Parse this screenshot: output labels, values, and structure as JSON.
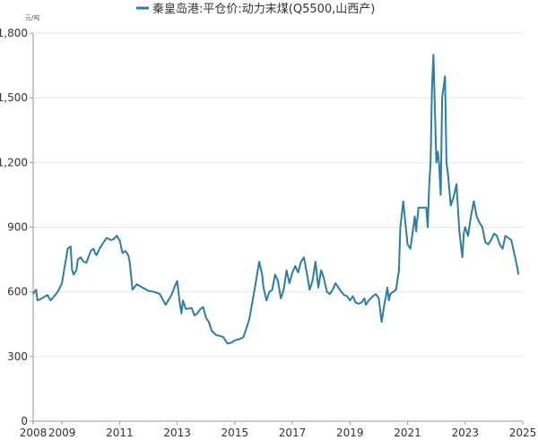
{
  "chart_data": {
    "type": "line",
    "title": "",
    "ylabel": "元/吨",
    "xlabel": "",
    "ylim": [
      0,
      1800
    ],
    "yticks": [
      0,
      300,
      600,
      900,
      1200,
      1500,
      1800
    ],
    "ytick_labels": [
      "0",
      "300",
      "600",
      "900",
      "1,200",
      "1,500",
      "1,800"
    ],
    "xlim": [
      2008.0,
      2025.0
    ],
    "xticks": [
      2008,
      2009,
      2011,
      2013,
      2015,
      2017,
      2019,
      2021,
      2023,
      2025
    ],
    "xtick_labels": [
      "2008",
      "2009",
      "2011",
      "2013",
      "2015",
      "2017",
      "2019",
      "2021",
      "2023",
      "2025"
    ],
    "grid": "horizontal",
    "legend_position": "top-center",
    "series": [
      {
        "name": "秦皇岛港:平仓价:动力末煤(Q5500,山西产)",
        "color": "#2b7ea4",
        "x": [
          2008.0,
          2008.1,
          2008.15,
          2008.3,
          2008.5,
          2008.6,
          2008.7,
          2008.85,
          2009.0,
          2009.1,
          2009.2,
          2009.3,
          2009.35,
          2009.4,
          2009.5,
          2009.55,
          2009.65,
          2009.75,
          2009.85,
          2010.0,
          2010.1,
          2010.15,
          2010.2,
          2010.3,
          2010.4,
          2010.55,
          2010.7,
          2010.8,
          2010.9,
          2011.0,
          2011.1,
          2011.2,
          2011.3,
          2011.35,
          2011.45,
          2011.6,
          2011.8,
          2012.0,
          2012.2,
          2012.4,
          2012.6,
          2012.8,
          2012.9,
          2013.0,
          2013.1,
          2013.15,
          2013.2,
          2013.3,
          2013.5,
          2013.6,
          2013.7,
          2013.8,
          2013.9,
          2014.0,
          2014.1,
          2014.2,
          2014.35,
          2014.5,
          2014.6,
          2014.75,
          2014.9,
          2015.0,
          2015.15,
          2015.3,
          2015.5,
          2015.7,
          2015.85,
          2015.95,
          2016.0,
          2016.1,
          2016.2,
          2016.3,
          2016.4,
          2016.5,
          2016.6,
          2016.7,
          2016.8,
          2016.9,
          2017.0,
          2017.1,
          2017.2,
          2017.3,
          2017.4,
          2017.5,
          2017.6,
          2017.7,
          2017.8,
          2017.9,
          2018.0,
          2018.1,
          2018.2,
          2018.3,
          2018.4,
          2018.5,
          2018.6,
          2018.7,
          2018.8,
          2018.9,
          2019.0,
          2019.1,
          2019.2,
          2019.3,
          2019.4,
          2019.5,
          2019.55,
          2019.65,
          2019.8,
          2019.9,
          2020.0,
          2020.1,
          2020.2,
          2020.25,
          2020.3,
          2020.35,
          2020.4,
          2020.5,
          2020.6,
          2020.7,
          2020.75,
          2020.85,
          2021.0,
          2021.1,
          2021.2,
          2021.25,
          2021.3,
          2021.32,
          2021.35,
          2021.38,
          2021.45,
          2021.5,
          2021.6,
          2021.65,
          2021.7,
          2021.75,
          2021.8,
          2021.85,
          2021.9,
          2021.95,
          2022.0,
          2022.05,
          2022.1,
          2022.15,
          2022.2,
          2022.3,
          2022.35,
          2022.4,
          2022.5,
          2022.6,
          2022.7,
          2022.8,
          2022.9,
          2022.95,
          2023.0,
          2023.1,
          2023.2,
          2023.3,
          2023.4,
          2023.5,
          2023.6,
          2023.7,
          2023.8,
          2023.9,
          2024.0,
          2024.1,
          2024.2,
          2024.3,
          2024.4,
          2024.5,
          2024.6,
          2024.7,
          2024.8,
          2024.85
        ],
        "y": [
          590,
          610,
          560,
          570,
          585,
          560,
          575,
          600,
          640,
          720,
          800,
          810,
          700,
          680,
          700,
          750,
          760,
          740,
          735,
          790,
          800,
          780,
          770,
          800,
          820,
          850,
          840,
          845,
          860,
          840,
          780,
          790,
          770,
          740,
          610,
          635,
          620,
          605,
          600,
          590,
          540,
          585,
          620,
          650,
          540,
          500,
          560,
          520,
          525,
          490,
          500,
          520,
          530,
          480,
          460,
          420,
          400,
          395,
          390,
          360,
          365,
          375,
          380,
          390,
          470,
          620,
          740,
          680,
          620,
          560,
          600,
          610,
          680,
          650,
          570,
          610,
          700,
          640,
          690,
          720,
          690,
          740,
          760,
          690,
          610,
          650,
          740,
          620,
          700,
          660,
          600,
          590,
          610,
          640,
          620,
          600,
          585,
          580,
          560,
          580,
          550,
          545,
          550,
          570,
          540,
          560,
          580,
          590,
          570,
          460,
          545,
          580,
          620,
          560,
          590,
          600,
          610,
          700,
          900,
          1020,
          820,
          800,
          900,
          950,
          880,
          920,
          950,
          990,
          990,
          990,
          990,
          990,
          900,
          1090,
          1200,
          1550,
          1700,
          1450,
          1200,
          1250,
          1180,
          1050,
          1500,
          1600,
          1200,
          1150,
          1000,
          1040,
          1100,
          880,
          760,
          870,
          900,
          860,
          950,
          1020,
          950,
          920,
          900,
          830,
          820,
          840,
          870,
          860,
          820,
          800,
          860,
          850,
          840,
          780,
          720,
          680
        ]
      }
    ]
  }
}
